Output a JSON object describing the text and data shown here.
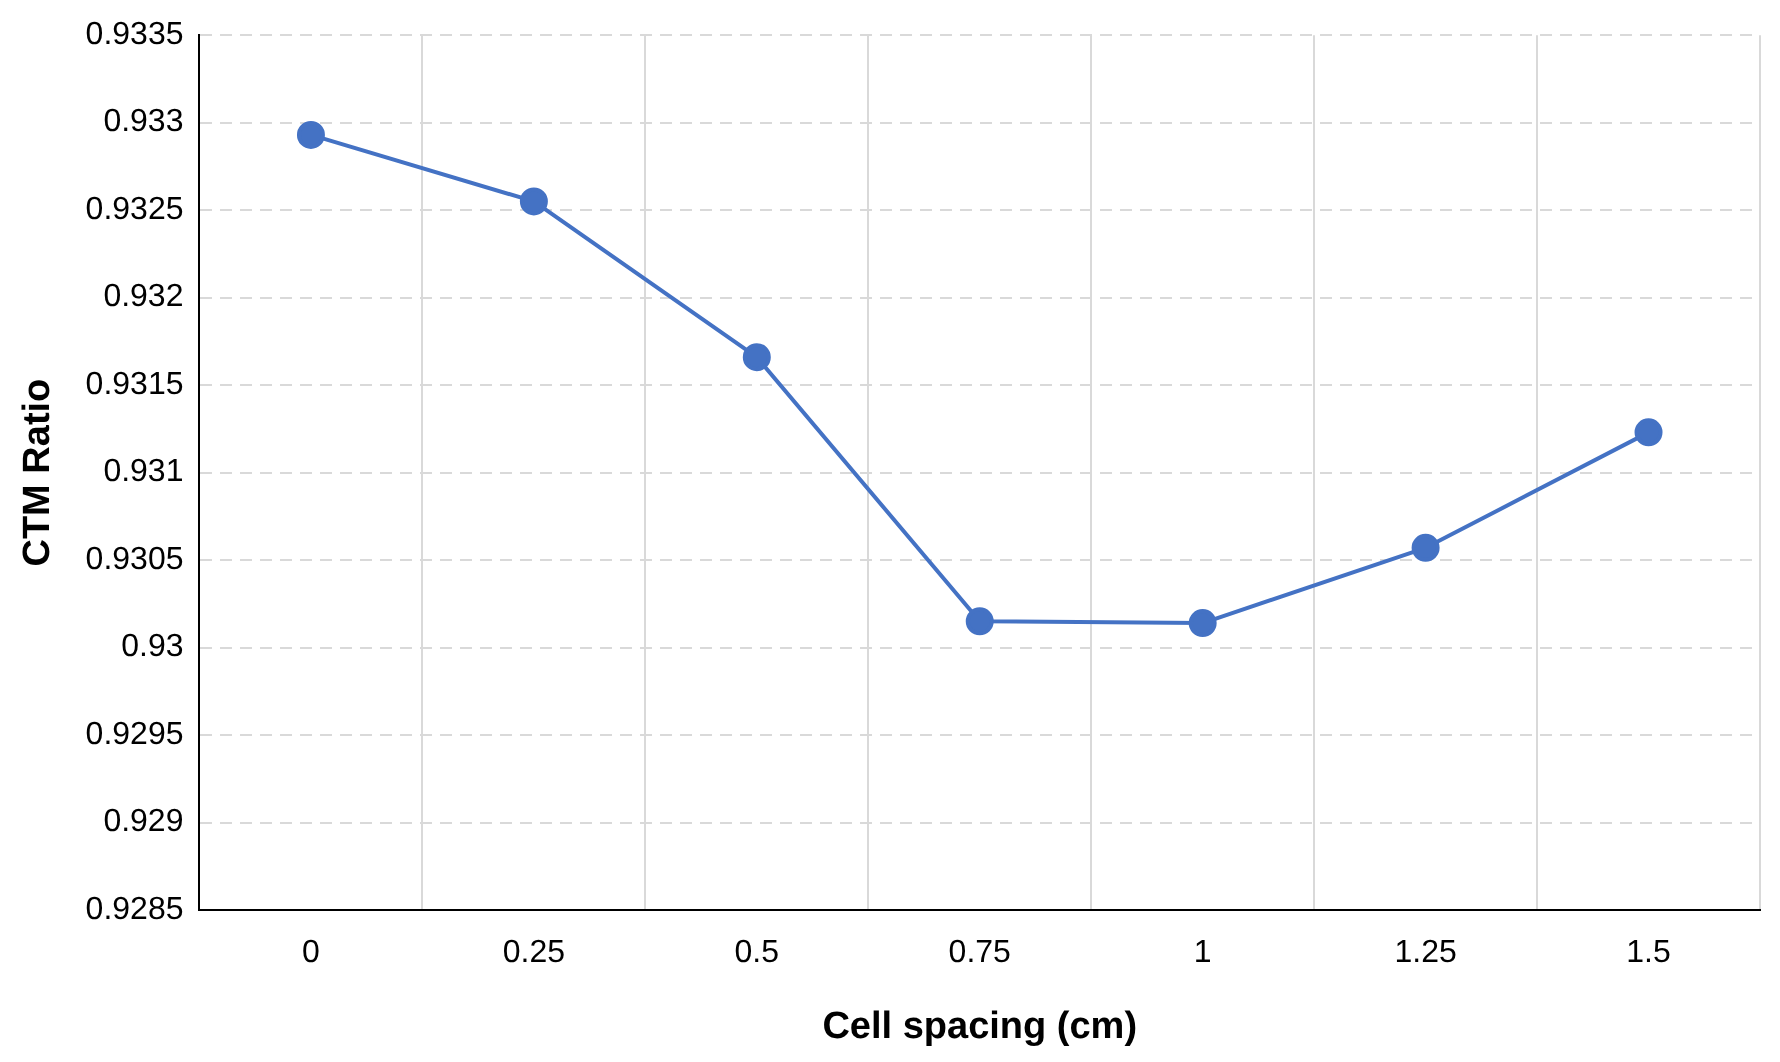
{
  "chart_data": {
    "type": "line",
    "xlabel": "Cell spacing (cm)",
    "ylabel": "CTM Ratio",
    "categories": [
      "0",
      "0.25",
      "0.5",
      "0.75",
      "1",
      "1.25",
      "1.5"
    ],
    "series": [
      {
        "color": "#4472c4",
        "values": [
          0.93293,
          0.93255,
          0.93166,
          0.93015,
          0.93014,
          0.93057,
          0.93123
        ]
      }
    ],
    "ylim": [
      0.9285,
      0.9335
    ],
    "yticks": [
      0.9285,
      0.929,
      0.9295,
      0.93,
      0.9305,
      0.931,
      0.9315,
      0.932,
      0.9325,
      0.933,
      0.9335
    ],
    "grid": true,
    "legend": false,
    "marker": "circle",
    "line_style": "solid"
  }
}
